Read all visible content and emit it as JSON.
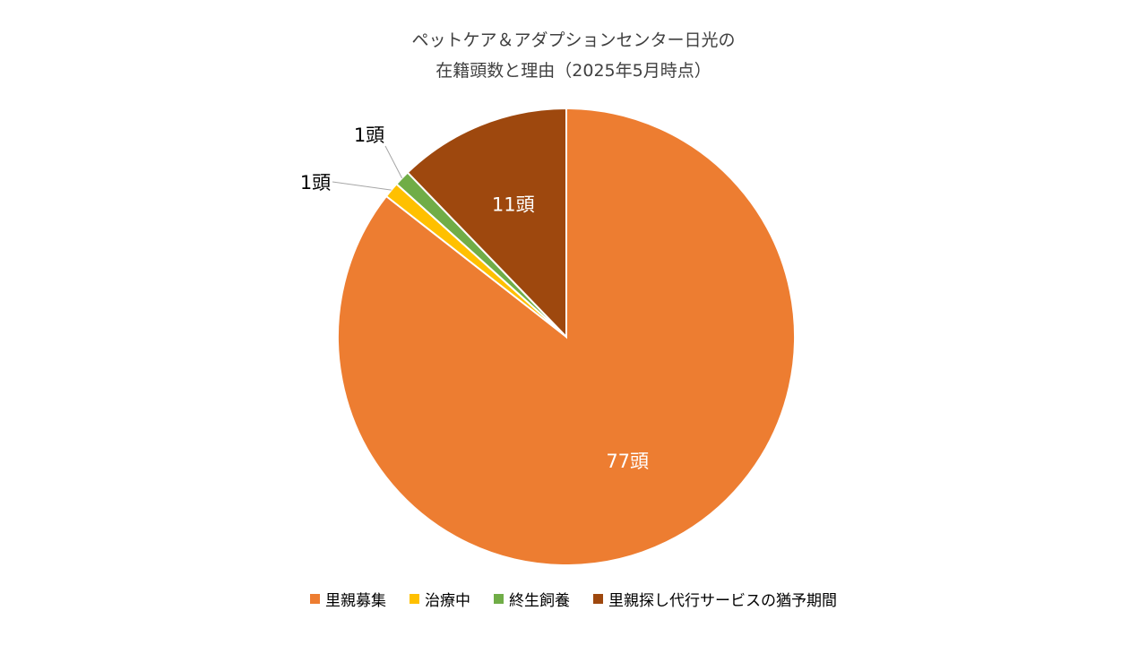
{
  "chart_data": {
    "type": "pie",
    "title_line1": "ペットケア＆アダプションセンター日光の",
    "title_line2": "在籍頭数と理由（2025年5月時点）",
    "start_angle": "12 o'clock",
    "direction": "clockwise",
    "slices": [
      {
        "name": "里親募集",
        "value": 77,
        "label": "77頭",
        "color": "#ED7D31"
      },
      {
        "name": "治療中",
        "value": 1,
        "label": "1頭",
        "color": "#FFC000"
      },
      {
        "name": "終生飼養",
        "value": 1,
        "label": "1頭",
        "color": "#70AD47"
      },
      {
        "name": "里親探し代行サービスの猶予期間",
        "value": 11,
        "label": "11頭",
        "color": "#9E480E"
      }
    ],
    "legend_position": "bottom"
  }
}
